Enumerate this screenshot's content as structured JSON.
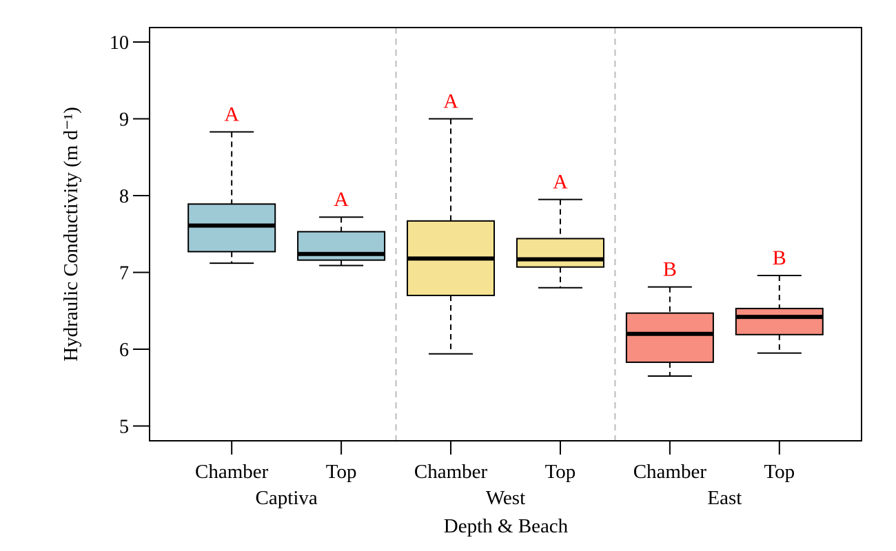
{
  "chart_data": {
    "type": "boxplot",
    "xlabel": "Depth & Beach",
    "ylabel": "Hydraulic Conductivity (m d⁻¹)",
    "ylim": [
      4.8,
      10.2
    ],
    "yticks": [
      5,
      6,
      7,
      8,
      9,
      10
    ],
    "grid": false,
    "letter_color": "#ff0000",
    "groups": [
      {
        "name": "Captiva",
        "color": "#9ecad6"
      },
      {
        "name": "West",
        "color": "#f5e393"
      },
      {
        "name": "East",
        "color": "#f78e80"
      }
    ],
    "boxes": [
      {
        "group": "Captiva",
        "label": "Chamber",
        "min": 7.12,
        "q1": 7.27,
        "median": 7.61,
        "q3": 7.89,
        "max": 8.83,
        "letter": "A"
      },
      {
        "group": "Captiva",
        "label": "Top",
        "min": 7.09,
        "q1": 7.16,
        "median": 7.24,
        "q3": 7.53,
        "max": 7.72,
        "letter": "A"
      },
      {
        "group": "West",
        "label": "Chamber",
        "min": 5.94,
        "q1": 6.7,
        "median": 7.18,
        "q3": 7.67,
        "max": 9.0,
        "letter": "A"
      },
      {
        "group": "West",
        "label": "Top",
        "min": 6.8,
        "q1": 7.07,
        "median": 7.17,
        "q3": 7.44,
        "max": 7.95,
        "letter": "A"
      },
      {
        "group": "East",
        "label": "Chamber",
        "min": 5.65,
        "q1": 5.83,
        "median": 6.2,
        "q3": 6.47,
        "max": 6.81,
        "letter": "B"
      },
      {
        "group": "East",
        "label": "Top",
        "min": 5.95,
        "q1": 6.19,
        "median": 6.42,
        "q3": 6.53,
        "max": 6.96,
        "letter": "B"
      }
    ]
  }
}
